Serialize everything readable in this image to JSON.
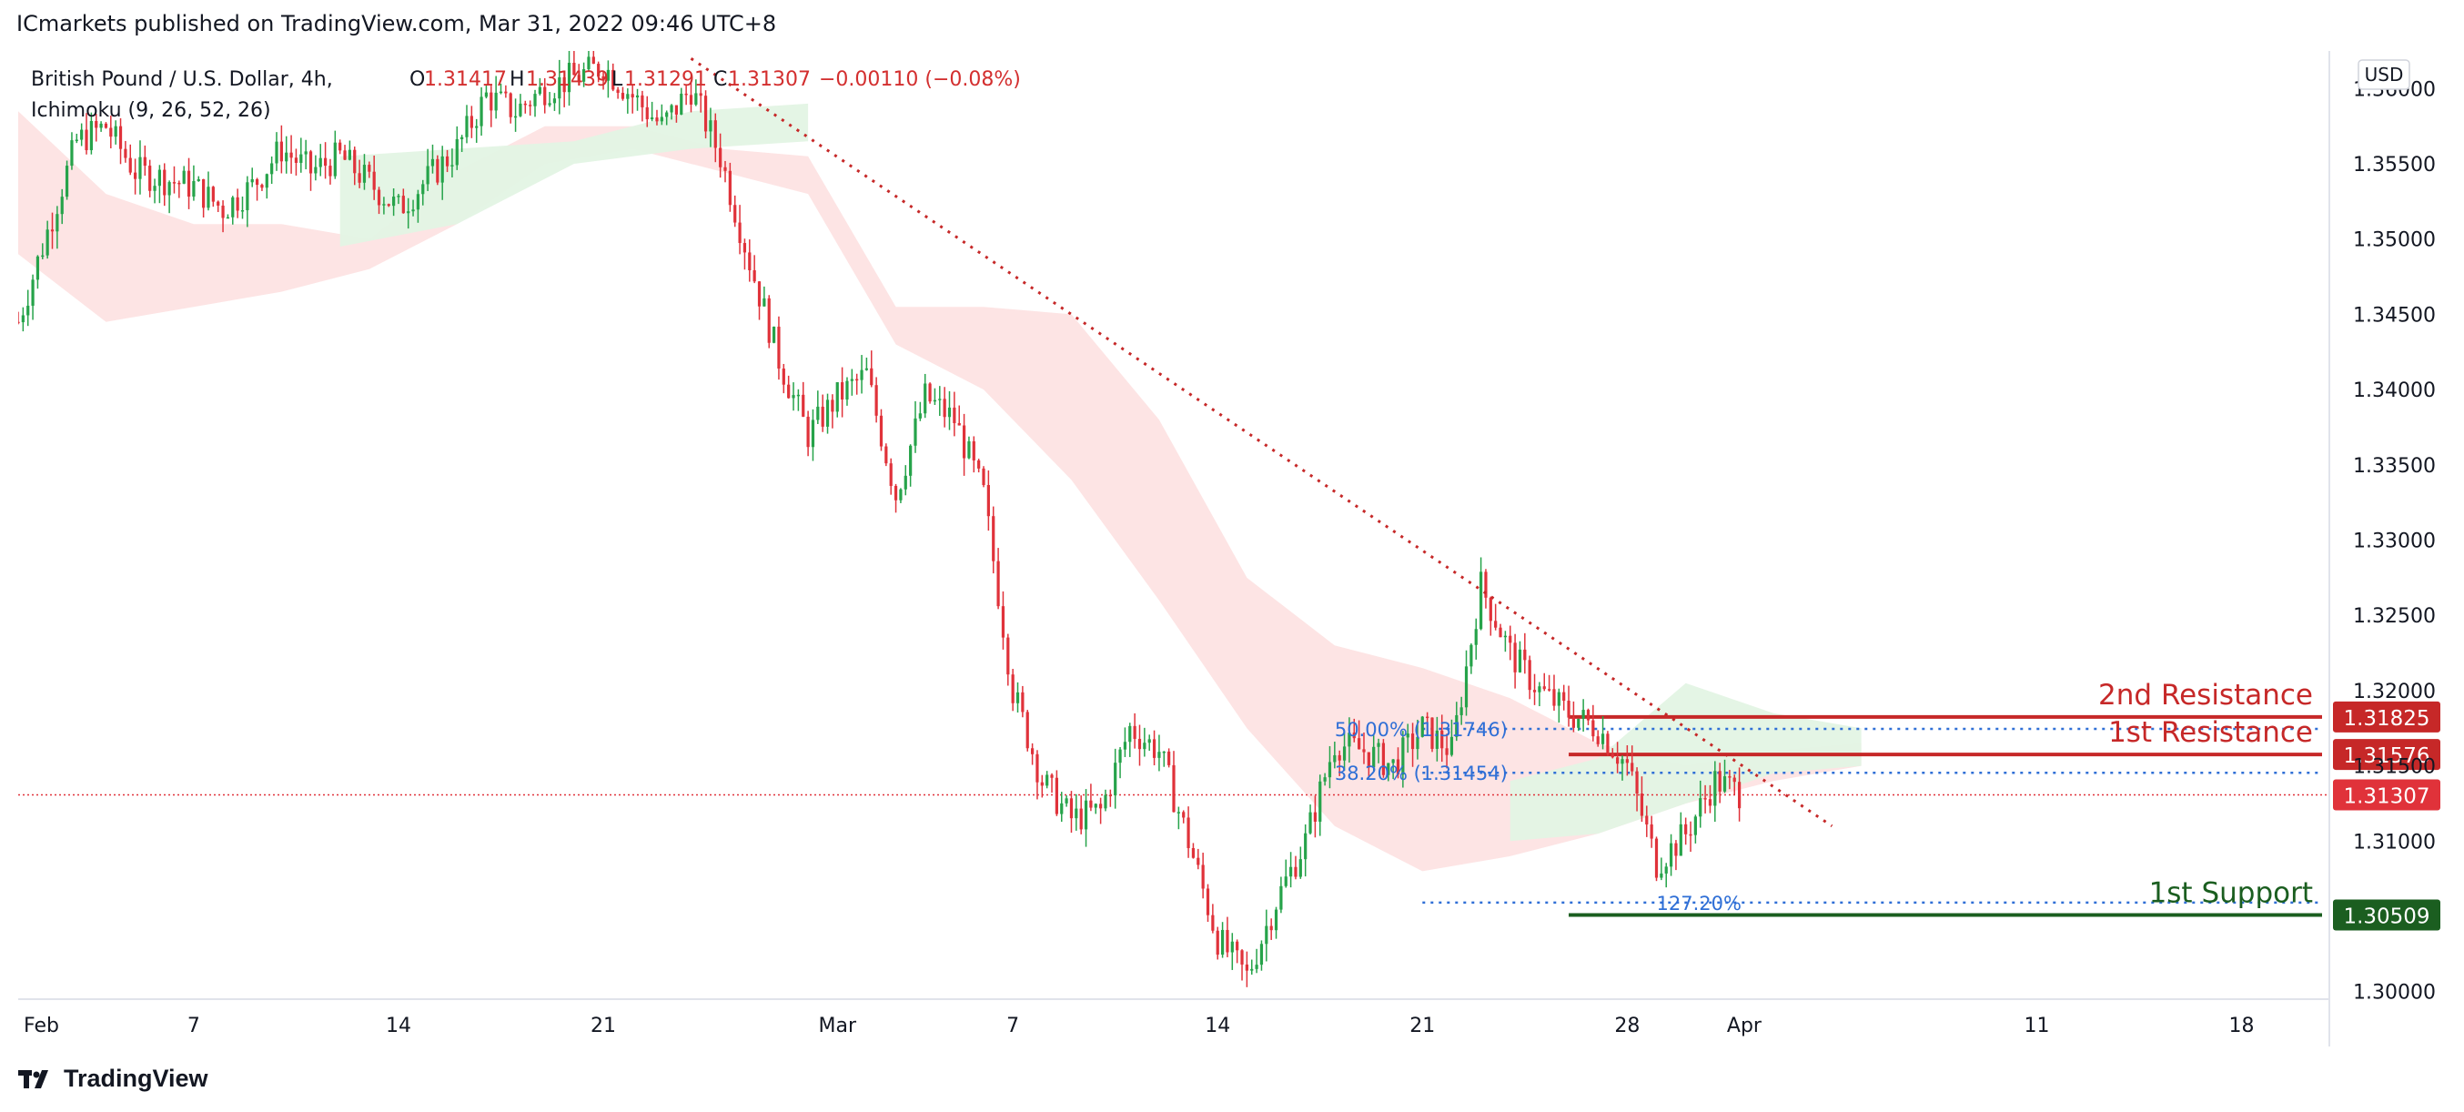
{
  "header": {
    "publisher_line": "ICmarkets published on TradingView.com, Mar 31, 2022 09:46 UTC+8"
  },
  "footer": {
    "brand": "TradingView",
    "logo_icon": "tradingview-logo-icon"
  },
  "colors": {
    "bull": "#26a34a",
    "bear": "#e0323a",
    "resistance": "#c62828",
    "support": "#1b5e20",
    "fib": "#2f6fd6",
    "cloud_bear": "#fde1e1",
    "cloud_bull": "#e3f4e4",
    "trendline": "#c62828",
    "current_price": "#e0323a",
    "axis_text": "#131722",
    "grid_border": "#e0e3eb"
  },
  "chart_data": {
    "type": "candlestick",
    "symbol": "British Pound / U.S. Dollar, 4h,",
    "indicator": "Ichimoku (9, 26, 52, 26)",
    "ohlc_labels": {
      "open_prefix": "O",
      "open": "1.31417",
      "high_prefix": "H",
      "high": "1.31439",
      "low_prefix": "L",
      "low": "1.31291",
      "close_prefix": "C",
      "close": "1.31307",
      "change": "−0.00110 (−0.08%)"
    },
    "currency": "USD",
    "y_axis": {
      "range": [
        1.2995,
        1.3625
      ],
      "ticks": [
        "1.36000",
        "1.35500",
        "1.35000",
        "1.34500",
        "1.34000",
        "1.33500",
        "1.33000",
        "1.32500",
        "1.32000",
        "1.31500",
        "1.31000",
        "1.30000"
      ],
      "tick_values": [
        1.36,
        1.355,
        1.35,
        1.345,
        1.34,
        1.335,
        1.33,
        1.325,
        1.32,
        1.315,
        1.31,
        1.3
      ]
    },
    "x_axis": {
      "range": [
        "2022-02-01",
        "2022-04-21"
      ],
      "ticks": [
        "Feb",
        "7",
        "14",
        "21",
        "Mar",
        "7",
        "14",
        "21",
        "28",
        "Apr",
        "11",
        "18"
      ],
      "tick_dates": [
        "2022-02-01",
        "2022-02-07",
        "2022-02-14",
        "2022-02-21",
        "2022-03-01",
        "2022-03-07",
        "2022-03-14",
        "2022-03-21",
        "2022-03-28",
        "2022-04-01",
        "2022-04-11",
        "2022-04-18"
      ]
    },
    "price_path": [
      [
        "2022-02-01",
        1.3445
      ],
      [
        "2022-02-02",
        1.3505
      ],
      [
        "2022-02-03",
        1.3565
      ],
      [
        "2022-02-04",
        1.3575
      ],
      [
        "2022-02-05",
        1.3545
      ],
      [
        "2022-02-07",
        1.3535
      ],
      [
        "2022-02-08",
        1.352
      ],
      [
        "2022-02-09",
        1.3535
      ],
      [
        "2022-02-10",
        1.356
      ],
      [
        "2022-02-11",
        1.3545
      ],
      [
        "2022-02-12",
        1.3555
      ],
      [
        "2022-02-14",
        1.352
      ],
      [
        "2022-02-15",
        1.354
      ],
      [
        "2022-02-16",
        1.356
      ],
      [
        "2022-02-17",
        1.3595
      ],
      [
        "2022-02-18",
        1.3585
      ],
      [
        "2022-02-19",
        1.36
      ],
      [
        "2022-02-21",
        1.3615
      ],
      [
        "2022-02-22",
        1.3595
      ],
      [
        "2022-02-23",
        1.3575
      ],
      [
        "2022-02-24",
        1.36
      ],
      [
        "2022-02-25",
        1.3555
      ],
      [
        "2022-02-26",
        1.3485
      ],
      [
        "2022-02-27",
        1.342
      ],
      [
        "2022-02-28",
        1.337
      ],
      [
        "2022-03-01",
        1.3395
      ],
      [
        "2022-03-02",
        1.341
      ],
      [
        "2022-03-03",
        1.333
      ],
      [
        "2022-03-04",
        1.3395
      ],
      [
        "2022-03-05",
        1.338
      ],
      [
        "2022-03-06",
        1.333
      ],
      [
        "2022-03-07",
        1.32
      ],
      [
        "2022-03-08",
        1.314
      ],
      [
        "2022-03-09",
        1.3115
      ],
      [
        "2022-03-10",
        1.312
      ],
      [
        "2022-03-11",
        1.3175
      ],
      [
        "2022-03-12",
        1.316
      ],
      [
        "2022-03-13",
        1.31
      ],
      [
        "2022-03-14",
        1.3035
      ],
      [
        "2022-03-15",
        1.301
      ],
      [
        "2022-03-16",
        1.306
      ],
      [
        "2022-03-17",
        1.31
      ],
      [
        "2022-03-18",
        1.3165
      ],
      [
        "2022-03-19",
        1.316
      ],
      [
        "2022-03-20",
        1.315
      ],
      [
        "2022-03-21",
        1.3175
      ],
      [
        "2022-03-22",
        1.316
      ],
      [
        "2022-03-23",
        1.327
      ],
      [
        "2022-03-24",
        1.3225
      ],
      [
        "2022-03-25",
        1.32
      ],
      [
        "2022-03-26",
        1.3185
      ],
      [
        "2022-03-27",
        1.3175
      ],
      [
        "2022-03-28",
        1.315
      ],
      [
        "2022-03-29",
        1.3085
      ],
      [
        "2022-03-30",
        1.3105
      ],
      [
        "2022-03-31",
        1.314
      ],
      [
        "2022-04-01",
        1.3131
      ]
    ],
    "cloud": {
      "bear_band_top": [
        [
          "2022-02-01",
          1.3585
        ],
        [
          "2022-02-04",
          1.353
        ],
        [
          "2022-02-07",
          1.351
        ],
        [
          "2022-02-10",
          1.351
        ],
        [
          "2022-02-13",
          1.35
        ],
        [
          "2022-02-16",
          1.3545
        ],
        [
          "2022-02-19",
          1.3575
        ],
        [
          "2022-02-22",
          1.3575
        ],
        [
          "2022-02-25",
          1.356
        ],
        [
          "2022-02-28",
          1.3555
        ],
        [
          "2022-03-03",
          1.3455
        ],
        [
          "2022-03-06",
          1.3455
        ],
        [
          "2022-03-09",
          1.345
        ],
        [
          "2022-03-12",
          1.338
        ],
        [
          "2022-03-15",
          1.3275
        ],
        [
          "2022-03-18",
          1.323
        ],
        [
          "2022-03-21",
          1.3215
        ],
        [
          "2022-03-24",
          1.3195
        ],
        [
          "2022-03-27",
          1.3165
        ],
        [
          "2022-03-30",
          1.315
        ],
        [
          "2022-04-02",
          1.316
        ],
        [
          "2022-04-05",
          1.3165
        ]
      ],
      "bear_band_bottom": [
        [
          "2022-02-01",
          1.349
        ],
        [
          "2022-02-04",
          1.3445
        ],
        [
          "2022-02-07",
          1.3455
        ],
        [
          "2022-02-10",
          1.3465
        ],
        [
          "2022-02-13",
          1.348
        ],
        [
          "2022-02-16",
          1.351
        ],
        [
          "2022-02-19",
          1.355
        ],
        [
          "2022-02-22",
          1.356
        ],
        [
          "2022-02-25",
          1.3545
        ],
        [
          "2022-02-28",
          1.353
        ],
        [
          "2022-03-03",
          1.343
        ],
        [
          "2022-03-06",
          1.34
        ],
        [
          "2022-03-09",
          1.334
        ],
        [
          "2022-03-12",
          1.326
        ],
        [
          "2022-03-15",
          1.3175
        ],
        [
          "2022-03-18",
          1.311
        ],
        [
          "2022-03-21",
          1.308
        ],
        [
          "2022-03-24",
          1.309
        ],
        [
          "2022-03-27",
          1.3105
        ],
        [
          "2022-03-30",
          1.3125
        ],
        [
          "2022-04-02",
          1.314
        ],
        [
          "2022-04-05",
          1.315
        ]
      ],
      "bull_patches": [
        [
          [
            "2022-02-12",
            1.3555
          ],
          [
            "2022-02-16",
            1.356
          ],
          [
            "2022-02-20",
            1.3565
          ],
          [
            "2022-02-24",
            1.3585
          ],
          [
            "2022-02-28",
            1.359
          ],
          [
            "2022-02-28",
            1.3565
          ],
          [
            "2022-02-24",
            1.356
          ],
          [
            "2022-02-20",
            1.355
          ],
          [
            "2022-02-16",
            1.351
          ],
          [
            "2022-02-12",
            1.3495
          ]
        ],
        [
          [
            "2022-03-24",
            1.314
          ],
          [
            "2022-03-27",
            1.3155
          ],
          [
            "2022-03-30",
            1.3205
          ],
          [
            "2022-04-02",
            1.3185
          ],
          [
            "2022-04-05",
            1.3175
          ],
          [
            "2022-04-05",
            1.315
          ],
          [
            "2022-04-02",
            1.3145
          ],
          [
            "2022-03-30",
            1.3125
          ],
          [
            "2022-03-27",
            1.3105
          ],
          [
            "2022-03-24",
            1.31
          ]
        ]
      ]
    },
    "trendline": {
      "from": [
        "2022-02-24",
        1.362
      ],
      "to": [
        "2022-04-04",
        1.311
      ]
    },
    "levels": [
      {
        "name": "2nd Resistance",
        "value": 1.31825,
        "label": "1.31825",
        "color": "#c62828"
      },
      {
        "name": "1st Resistance",
        "value": 1.31576,
        "label": "1.31576",
        "color": "#c62828"
      },
      {
        "name": "1st Support",
        "value": 1.30509,
        "label": "1.30509",
        "color": "#1b5e20"
      }
    ],
    "fibonacci": [
      {
        "label": "50.00% (1.31746)",
        "value": 1.31746
      },
      {
        "label": "38.20% (1.31454)",
        "value": 1.31454
      },
      {
        "label": "127.20%",
        "value": 1.30592
      }
    ],
    "current_price": {
      "value": 1.31307,
      "label": "1.31307"
    }
  }
}
